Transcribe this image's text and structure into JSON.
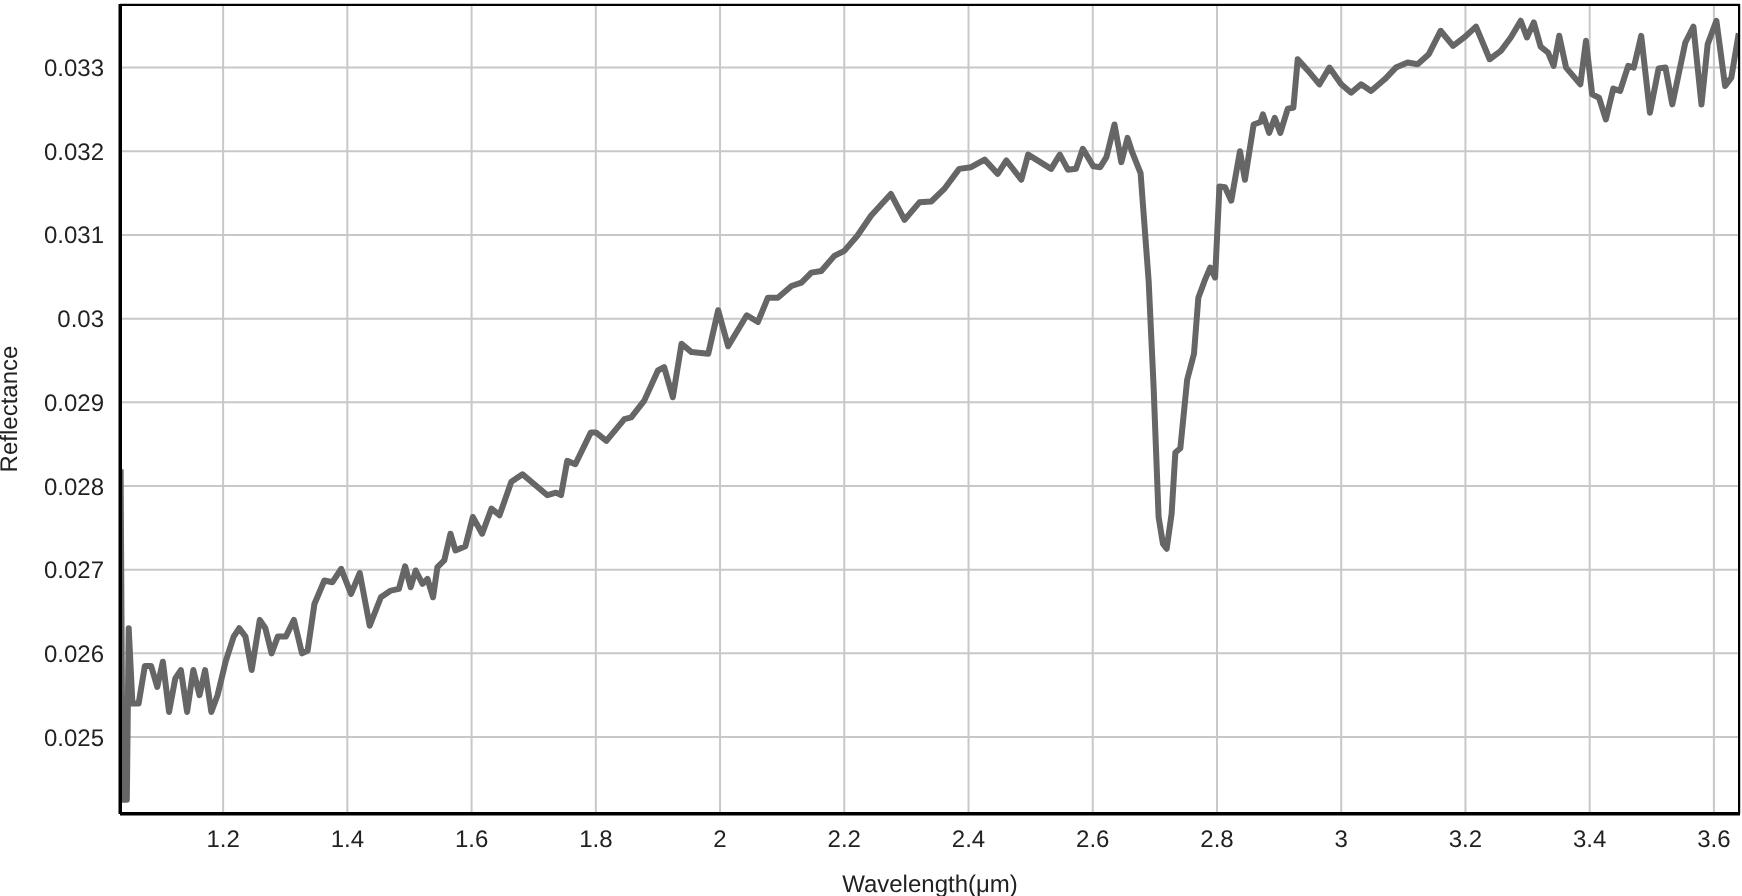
{
  "chart_data": {
    "type": "line",
    "xlabel": "Wavelength(μm)",
    "ylabel": "Reflectance",
    "xlim": [
      1.034,
      3.642
    ],
    "ylim": [
      0.02408,
      0.03376
    ],
    "xticks": [
      1.2,
      1.4,
      1.6,
      1.8,
      2,
      2.2,
      2.4,
      2.6,
      2.8,
      3,
      3.2,
      3.4,
      3.6
    ],
    "yticks": [
      0.025,
      0.026,
      0.027,
      0.028,
      0.029,
      0.03,
      0.031,
      0.032,
      0.033
    ],
    "grid": true,
    "legend": false,
    "marker": "none",
    "line_style": "solid",
    "x": [
      1.035,
      1.038,
      1.045,
      1.048,
      1.054,
      1.064,
      1.074,
      1.084,
      1.094,
      1.103,
      1.113,
      1.123,
      1.132,
      1.142,
      1.152,
      1.162,
      1.171,
      1.181,
      1.191,
      1.204,
      1.217,
      1.226,
      1.236,
      1.246,
      1.259,
      1.268,
      1.278,
      1.288,
      1.301,
      1.314,
      1.327,
      1.336,
      1.347,
      1.363,
      1.376,
      1.39,
      1.406,
      1.42,
      1.436,
      1.454,
      1.47,
      1.483,
      1.493,
      1.502,
      1.51,
      1.521,
      1.529,
      1.538,
      1.545,
      1.556,
      1.566,
      1.574,
      1.59,
      1.602,
      1.617,
      1.632,
      1.645,
      1.664,
      1.682,
      1.701,
      1.722,
      1.736,
      1.744,
      1.754,
      1.767,
      1.792,
      1.8,
      1.817,
      1.846,
      1.857,
      1.878,
      1.9,
      1.91,
      1.924,
      1.938,
      1.954,
      1.981,
      1.997,
      2.013,
      2.043,
      2.061,
      2.077,
      2.093,
      2.115,
      2.131,
      2.147,
      2.163,
      2.184,
      2.2,
      2.221,
      2.243,
      2.275,
      2.297,
      2.321,
      2.34,
      2.361,
      2.385,
      2.404,
      2.426,
      2.447,
      2.461,
      2.485,
      2.496,
      2.533,
      2.547,
      2.56,
      2.573,
      2.584,
      2.601,
      2.612,
      2.622,
      2.635,
      2.646,
      2.656,
      2.663,
      2.677,
      2.69,
      2.698,
      2.706,
      2.713,
      2.719,
      2.727,
      2.733,
      2.741,
      2.752,
      2.763,
      2.77,
      2.781,
      2.789,
      2.797,
      2.804,
      2.813,
      2.823,
      2.837,
      2.845,
      2.859,
      2.87,
      2.874,
      2.884,
      2.893,
      2.902,
      2.914,
      2.923,
      2.93,
      2.947,
      2.965,
      2.981,
      3,
      3.016,
      3.032,
      3.048,
      3.07,
      3.088,
      3.107,
      3.123,
      3.141,
      3.16,
      3.18,
      3.198,
      3.217,
      3.239,
      3.257,
      3.273,
      3.289,
      3.299,
      3.31,
      3.321,
      3.333,
      3.342,
      3.351,
      3.362,
      3.385,
      3.394,
      3.404,
      3.415,
      3.426,
      3.438,
      3.449,
      3.462,
      3.471,
      3.483,
      3.497,
      3.511,
      3.522,
      3.533,
      3.554,
      3.567,
      3.58,
      3.59,
      3.604,
      3.618,
      3.628,
      3.64
    ],
    "series": [
      {
        "color": "#666666",
        "values": [
          0.0282,
          0.02425,
          0.02425,
          0.0263,
          0.0254,
          0.0254,
          0.02585,
          0.02585,
          0.0256,
          0.0259,
          0.0253,
          0.0257,
          0.0258,
          0.0253,
          0.0258,
          0.0255,
          0.0258,
          0.0253,
          0.0255,
          0.0259,
          0.0262,
          0.0263,
          0.0262,
          0.0258,
          0.0264,
          0.0263,
          0.026,
          0.0262,
          0.0262,
          0.0264,
          0.026,
          0.02603,
          0.02659,
          0.02687,
          0.02685,
          0.02701,
          0.02671,
          0.02696,
          0.02633,
          0.02667,
          0.02675,
          0.02677,
          0.02704,
          0.02679,
          0.02699,
          0.02683,
          0.02689,
          0.02667,
          0.02703,
          0.02711,
          0.02743,
          0.02723,
          0.02728,
          0.02763,
          0.02743,
          0.02773,
          0.02765,
          0.02805,
          0.02814,
          0.02802,
          0.02789,
          0.02792,
          0.02789,
          0.0283,
          0.02826,
          0.02864,
          0.02864,
          0.02854,
          0.0288,
          0.02882,
          0.02902,
          0.02938,
          0.02942,
          0.02906,
          0.0297,
          0.0296,
          0.02958,
          0.0301,
          0.02967,
          0.03004,
          0.02996,
          0.03025,
          0.03025,
          0.03039,
          0.03043,
          0.03055,
          0.03057,
          0.03075,
          0.03081,
          0.03099,
          0.03123,
          0.03149,
          0.03118,
          0.03139,
          0.0314,
          0.03155,
          0.03179,
          0.03181,
          0.0319,
          0.03173,
          0.03189,
          0.03166,
          0.03196,
          0.03179,
          0.03196,
          0.03178,
          0.03179,
          0.03203,
          0.03182,
          0.03181,
          0.03193,
          0.03232,
          0.03187,
          0.03216,
          0.032,
          0.03174,
          0.03045,
          0.02918,
          0.02763,
          0.02731,
          0.02725,
          0.02767,
          0.0284,
          0.02845,
          0.02927,
          0.02958,
          0.03025,
          0.03047,
          0.03061,
          0.03049,
          0.03158,
          0.03157,
          0.03141,
          0.032,
          0.03166,
          0.03232,
          0.03235,
          0.03244,
          0.03222,
          0.0324,
          0.03222,
          0.03251,
          0.03252,
          0.0331,
          0.03296,
          0.0328,
          0.033,
          0.0328,
          0.0327,
          0.0328,
          0.03272,
          0.03286,
          0.033,
          0.03306,
          0.03304,
          0.03316,
          0.03344,
          0.03326,
          0.03336,
          0.03349,
          0.0331,
          0.0332,
          0.03336,
          0.03356,
          0.03336,
          0.03354,
          0.03325,
          0.03318,
          0.03302,
          0.03338,
          0.033,
          0.0328,
          0.03332,
          0.03268,
          0.03264,
          0.03238,
          0.03275,
          0.03272,
          0.03302,
          0.033,
          0.03338,
          0.03246,
          0.03299,
          0.033,
          0.03256,
          0.0333,
          0.03349,
          0.03256,
          0.03328,
          0.03356,
          0.03278,
          0.03288,
          0.03341
        ]
      }
    ]
  }
}
